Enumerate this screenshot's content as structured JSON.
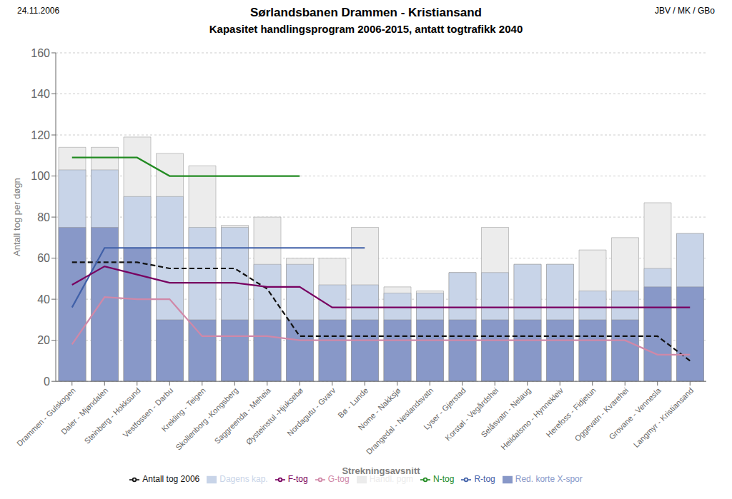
{
  "chart_data": {
    "type": "bar",
    "title": "Sørlandsbanen Drammen - Kristiansand",
    "subtitle": "Kapasitet handlingsprogram 2006-2015, antatt togtrafikk 2040",
    "annotations": [
      "24.11.2006",
      "JBV / MK / GBo"
    ],
    "x_label": "Strekningsavsnitt",
    "y_label": "Antall tog per døgn",
    "categories": [
      "Drammen - Gulskogen",
      "Daler - Mjøndalen",
      "Steinberg - Hokksund",
      "Vestfossen - Darbu",
      "Krekling - Teigen",
      "Skollenborg -Kongsberg",
      "Saggreenda - Meheia",
      "Øysteinstul -Hjuksebø",
      "Nordagutu - Gvarv",
      "Bø - Lunde",
      "Nome - Nakksjø",
      "Drangedal - Neslandsvatn",
      "Lyser - Gjerstad",
      "Korstøl - Vegårdshei",
      "Selåsvatn - Nelaug",
      "Heildalsmo - Hynnekleiv",
      "Herefoss - Fidjetun",
      "Oggevatn - Kvarehei",
      "Grovane - Vennesla",
      "Langmyr - Kristiansand"
    ],
    "series": [
      {
        "name": "Handl. pgm",
        "type": "bar",
        "color": "#ececec",
        "values": [
          114,
          114,
          119,
          111,
          105,
          76,
          80,
          60,
          60,
          75,
          46,
          44,
          53,
          75,
          57,
          57,
          64,
          70,
          87,
          72
        ]
      },
      {
        "name": "Dagens kap.",
        "type": "bar",
        "color": "#c8d4e8",
        "values": [
          103,
          103,
          90,
          90,
          75,
          75,
          57,
          57,
          47,
          47,
          43,
          43,
          53,
          53,
          57,
          57,
          44,
          44,
          55,
          72
        ]
      },
      {
        "name": "Red. korte X-spor",
        "type": "bar",
        "color": "#8898c8",
        "values": [
          75,
          75,
          65,
          30,
          30,
          30,
          30,
          30,
          30,
          30,
          30,
          30,
          30,
          30,
          30,
          30,
          30,
          30,
          46,
          46
        ]
      },
      {
        "name": "Antall tog 2006",
        "type": "line",
        "color": "#111111",
        "line_style": "dashed",
        "values": [
          58,
          58,
          58,
          55,
          55,
          55,
          45,
          22,
          22,
          22,
          22,
          22,
          22,
          22,
          22,
          22,
          22,
          22,
          22,
          10
        ]
      },
      {
        "name": "N-tog",
        "type": "line",
        "color": "#228B22",
        "line_style": "solid",
        "values": [
          109,
          109,
          109,
          100,
          100,
          100,
          100,
          100,
          null,
          null,
          null,
          null,
          null,
          null,
          null,
          null,
          null,
          null,
          null,
          null
        ]
      },
      {
        "name": "R-tog",
        "type": "line",
        "color": "#4060a8",
        "line_style": "solid",
        "values": [
          36,
          65,
          65,
          65,
          65,
          65,
          65,
          65,
          65,
          65,
          null,
          null,
          null,
          null,
          null,
          null,
          null,
          null,
          null,
          null
        ]
      },
      {
        "name": "F-tog",
        "type": "line",
        "color": "#780060",
        "line_style": "solid",
        "values": [
          47,
          56,
          52,
          48,
          48,
          48,
          46,
          46,
          36,
          36,
          36,
          36,
          36,
          36,
          36,
          36,
          36,
          36,
          36,
          36
        ]
      },
      {
        "name": "G-tog",
        "type": "line",
        "color": "#d088a8",
        "line_style": "solid",
        "values": [
          18,
          41,
          40,
          40,
          22,
          22,
          22,
          20,
          20,
          20,
          20,
          20,
          20,
          20,
          20,
          20,
          20,
          20,
          13,
          13
        ]
      }
    ],
    "ylim": [
      0,
      160
    ],
    "yticks": [
      0,
      20,
      40,
      60,
      80,
      100,
      120,
      140,
      160
    ],
    "grid": true,
    "legend": "bottom"
  }
}
